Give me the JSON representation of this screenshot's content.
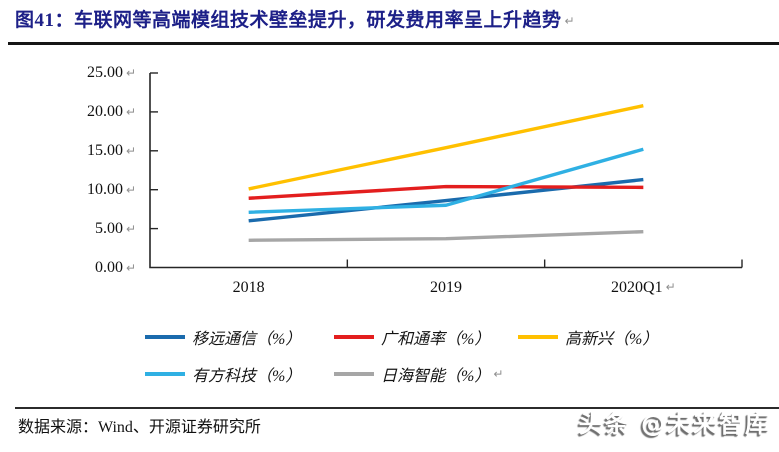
{
  "header": {
    "figure_title": "图41：车联网等高端模组技术壁垒提升，研发费用率呈上升趋势",
    "return_mark": "↵"
  },
  "chart_data": {
    "type": "line",
    "title": "图41：车联网等高端模组技术壁垒提升，研发费用率呈上升趋势",
    "categories": [
      "2018",
      "2019",
      "2020Q1"
    ],
    "series": [
      {
        "name": "移远通信（%）",
        "color": "#1A6BAD",
        "values": [
          6.0,
          8.6,
          11.3
        ]
      },
      {
        "name": "广和通率（%）",
        "color": "#E31E1E",
        "values": [
          8.9,
          10.4,
          10.3
        ]
      },
      {
        "name": "高新兴（%）",
        "color": "#FFC000",
        "values": [
          10.1,
          15.4,
          20.8
        ]
      },
      {
        "name": "有方科技（%）",
        "color": "#2FB0E3",
        "values": [
          7.1,
          8.0,
          15.2
        ]
      },
      {
        "name": "日海智能（%）",
        "color": "#A6A6A6",
        "values": [
          3.5,
          3.7,
          4.6
        ]
      }
    ],
    "ylim": [
      0,
      25
    ],
    "y_tick_values": [
      0,
      5,
      10,
      15,
      20,
      25
    ],
    "y_tick_labels": [
      "0.00",
      "5.00",
      "10.00",
      "15.00",
      "20.00",
      "25.00"
    ],
    "xlabel": "",
    "ylabel": "",
    "grid": false,
    "legend_position": "bottom"
  },
  "footer": {
    "source": "数据来源：Wind、开源证券研究所",
    "watermark": "头条 @未来智库"
  }
}
